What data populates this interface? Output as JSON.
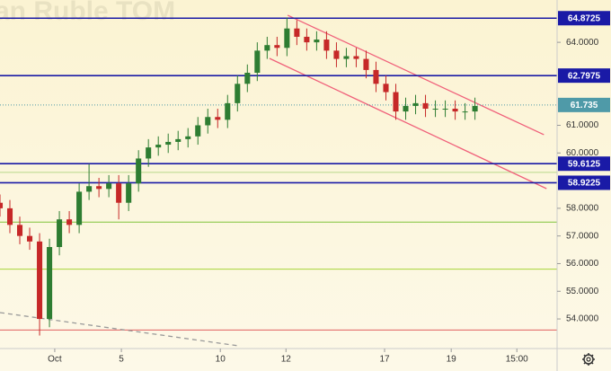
{
  "chart_data": {
    "type": "candlestick",
    "title": "an Ruble TOM",
    "x": [
      0,
      3,
      6,
      9,
      12,
      15,
      18,
      21,
      24,
      27,
      30,
      33,
      36,
      39,
      42,
      45,
      48,
      51,
      54,
      57,
      60,
      63,
      66,
      69,
      72,
      75,
      78,
      81,
      84,
      87,
      90,
      93,
      96,
      99,
      102,
      105,
      108,
      111,
      114,
      117,
      120,
      123,
      126,
      129,
      132,
      135,
      138,
      141,
      144
    ],
    "open": [
      58.2,
      58.0,
      57.4,
      57.0,
      56.8,
      54.0,
      56.6,
      57.6,
      57.4,
      58.6,
      58.8,
      58.7,
      58.9,
      58.2,
      58.9,
      59.8,
      60.2,
      60.3,
      60.4,
      60.5,
      60.6,
      61.0,
      61.3,
      61.2,
      61.8,
      62.5,
      62.9,
      63.7,
      63.9,
      63.8,
      64.5,
      64.2,
      64.0,
      64.1,
      63.7,
      63.4,
      63.5,
      63.4,
      63.0,
      62.5,
      62.2,
      61.5,
      61.7,
      61.8,
      61.6,
      61.6,
      61.6,
      61.5,
      61.5
    ],
    "high": [
      58.5,
      58.3,
      57.7,
      57.3,
      57.1,
      56.9,
      57.9,
      57.9,
      58.9,
      59.6,
      59.1,
      59.2,
      59.2,
      59.2,
      60.1,
      60.5,
      60.6,
      60.7,
      60.8,
      60.9,
      61.3,
      61.6,
      61.6,
      62.1,
      62.8,
      63.2,
      64.0,
      64.2,
      64.2,
      64.9,
      64.8,
      64.5,
      64.4,
      64.4,
      64.0,
      63.8,
      63.8,
      63.7,
      63.3,
      62.8,
      62.5,
      62.0,
      62.1,
      62.1,
      61.9,
      61.9,
      61.9,
      61.8,
      62.0
    ],
    "low": [
      57.7,
      57.1,
      56.7,
      56.5,
      53.4,
      53.7,
      56.3,
      57.1,
      57.1,
      58.3,
      58.4,
      58.4,
      57.6,
      57.9,
      58.6,
      59.5,
      59.9,
      60.0,
      60.1,
      60.2,
      60.3,
      60.7,
      60.9,
      60.9,
      61.5,
      62.2,
      62.6,
      63.4,
      63.5,
      63.5,
      63.9,
      63.7,
      63.7,
      63.4,
      63.1,
      63.1,
      63.1,
      62.7,
      62.2,
      61.9,
      61.2,
      61.2,
      61.4,
      61.3,
      61.3,
      61.3,
      61.2,
      61.2,
      61.2
    ],
    "close": [
      58.0,
      57.4,
      57.0,
      56.8,
      54.0,
      56.6,
      57.6,
      57.4,
      58.6,
      58.8,
      58.7,
      58.9,
      58.2,
      58.9,
      59.8,
      60.2,
      60.3,
      60.4,
      60.5,
      60.6,
      61.0,
      61.3,
      61.2,
      61.8,
      62.5,
      62.9,
      63.7,
      63.9,
      63.8,
      64.5,
      64.2,
      64.0,
      64.1,
      63.7,
      63.4,
      63.5,
      63.4,
      63.0,
      62.5,
      62.2,
      61.5,
      61.7,
      61.8,
      61.6,
      61.6,
      61.6,
      61.5,
      61.5,
      61.7
    ],
    "up_color": "#2e7d32",
    "down_color": "#c62828",
    "xlim": [
      0,
      168.9
    ],
    "ylim": [
      52.93,
      65.53
    ],
    "xticks": [
      {
        "value": 16.6,
        "label": "Oct"
      },
      {
        "value": 36.8,
        "label": "5"
      },
      {
        "value": 66.8,
        "label": "10"
      },
      {
        "value": 86.7,
        "label": "12"
      },
      {
        "value": 116.6,
        "label": "17"
      },
      {
        "value": 136.8,
        "label": "19"
      },
      {
        "value": 156.7,
        "label": "15:00"
      }
    ],
    "yticks": [
      {
        "value": 64,
        "label": "64.0000"
      },
      {
        "value": 61,
        "label": "61.0000"
      },
      {
        "value": 60,
        "label": "60.0000"
      },
      {
        "value": 58,
        "label": "58.0000"
      },
      {
        "value": 57,
        "label": "57.0000"
      },
      {
        "value": 56,
        "label": "56.0000"
      },
      {
        "value": 55,
        "label": "55.0000"
      },
      {
        "value": 54,
        "label": "54.0000"
      }
    ],
    "levels": [
      {
        "value": 64.8725,
        "color": "#1a1aa6"
      },
      {
        "value": 62.7975,
        "color": "#1a1aa6"
      },
      {
        "value": 61.735,
        "color": "#4f9aa8",
        "style": "dotted"
      },
      {
        "value": 59.6125,
        "color": "#1a1aa6"
      },
      {
        "value": 58.9225,
        "color": "#1a1aa6"
      }
    ],
    "lines": [
      {
        "value": 59.3,
        "color": "#b8d88a"
      },
      {
        "value": 57.5,
        "color": "#7fc43a"
      },
      {
        "value": 55.8,
        "color": "#a6d43a"
      },
      {
        "value": 53.6,
        "color": "#e06060"
      }
    ],
    "trend_lines": [
      {
        "x": [
          87.2,
          164.9
        ],
        "y": [
          64.98,
          60.66
        ],
        "color": "#f0607a",
        "style": "solid"
      },
      {
        "x": [
          81.7,
          165.7
        ],
        "y": [
          63.42,
          58.71
        ],
        "color": "#f0607a",
        "style": "solid"
      },
      {
        "x": [
          0,
          72.2
        ],
        "y": [
          54.23,
          53.03
        ],
        "color": "#999999",
        "style": "dashed"
      }
    ]
  }
}
